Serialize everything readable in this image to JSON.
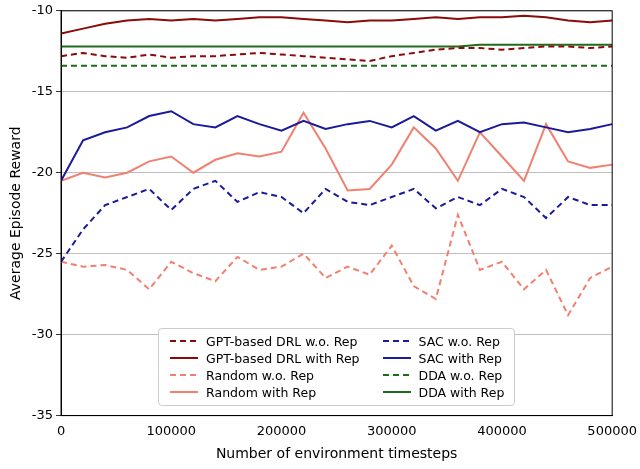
{
  "chart_data": {
    "type": "line",
    "x_label": "Number of environment timesteps",
    "y_label": "Average Episode Reward",
    "x": [
      0,
      20000,
      40000,
      60000,
      80000,
      100000,
      120000,
      140000,
      160000,
      180000,
      200000,
      220000,
      240000,
      260000,
      280000,
      300000,
      320000,
      340000,
      360000,
      380000,
      400000,
      420000,
      440000,
      460000,
      480000,
      500000
    ],
    "xlim": [
      0,
      500000
    ],
    "xticks": [
      0,
      100000,
      200000,
      300000,
      400000,
      500000
    ],
    "ylim": [
      -35,
      -10
    ],
    "yticks": [
      -35,
      -30,
      -25,
      -20,
      -15,
      -10
    ],
    "grid": true,
    "legend": "bottom",
    "series": [
      {
        "name": "GPT-based DRL w.o. Rep",
        "color": "#8b0a0a",
        "line_style": "dashed",
        "values": [
          -12.8,
          -12.6,
          -12.8,
          -12.9,
          -12.7,
          -12.9,
          -12.8,
          -12.8,
          -12.7,
          -12.6,
          -12.7,
          -12.8,
          -12.9,
          -13.0,
          -13.1,
          -12.8,
          -12.6,
          -12.4,
          -12.3,
          -12.3,
          -12.4,
          -12.3,
          -12.2,
          -12.2,
          -12.3,
          -12.2
        ]
      },
      {
        "name": "SAC w.o. Rep",
        "color": "#1a1a9a",
        "line_style": "dashed",
        "values": [
          -25.5,
          -23.5,
          -22.0,
          -21.5,
          -21.0,
          -22.3,
          -21.0,
          -20.5,
          -21.8,
          -21.2,
          -21.5,
          -22.5,
          -21.0,
          -21.8,
          -22.0,
          -21.5,
          -21.0,
          -22.2,
          -21.5,
          -22.0,
          -21.0,
          -21.5,
          -22.8,
          -21.5,
          -22.0,
          -22.0
        ]
      },
      {
        "name": "GPT-based DRL with Rep",
        "color": "#8b0a0a",
        "line_style": "solid",
        "values": [
          -11.4,
          -11.1,
          -10.8,
          -10.6,
          -10.5,
          -10.6,
          -10.5,
          -10.6,
          -10.5,
          -10.4,
          -10.4,
          -10.5,
          -10.6,
          -10.7,
          -10.6,
          -10.6,
          -10.5,
          -10.4,
          -10.5,
          -10.4,
          -10.4,
          -10.3,
          -10.4,
          -10.6,
          -10.7,
          -10.6
        ]
      },
      {
        "name": "SAC with Rep",
        "color": "#1a1a9a",
        "line_style": "solid",
        "values": [
          -20.5,
          -18.0,
          -17.5,
          -17.2,
          -16.5,
          -16.2,
          -17.0,
          -17.2,
          -16.5,
          -17.0,
          -17.4,
          -16.8,
          -17.3,
          -17.0,
          -16.8,
          -17.2,
          -16.5,
          -17.4,
          -16.8,
          -17.5,
          -17.0,
          -16.9,
          -17.2,
          -17.5,
          -17.3,
          -17.0
        ]
      },
      {
        "name": "Random w.o. Rep",
        "color": "#f08070",
        "line_style": "dashed",
        "values": [
          -25.5,
          -25.8,
          -25.7,
          -26.0,
          -27.2,
          -25.5,
          -26.2,
          -26.7,
          -25.2,
          -26.0,
          -25.8,
          -25.0,
          -26.5,
          -25.8,
          -26.3,
          -24.5,
          -27.0,
          -27.8,
          -22.6,
          -26.0,
          -25.5,
          -27.2,
          -26.0,
          -28.8,
          -26.5,
          -25.8
        ]
      },
      {
        "name": "DDA w.o. Rep",
        "color": "#1e6b1e",
        "line_style": "dashed",
        "values": [
          -13.4,
          -13.4,
          -13.4,
          -13.4,
          -13.4,
          -13.4,
          -13.4,
          -13.4,
          -13.4,
          -13.4,
          -13.4,
          -13.4,
          -13.4,
          -13.4,
          -13.4,
          -13.4,
          -13.4,
          -13.4,
          -13.4,
          -13.4,
          -13.4,
          -13.4,
          -13.4,
          -13.4,
          -13.4,
          -13.4
        ]
      },
      {
        "name": "Random with Rep",
        "color": "#f08070",
        "line_style": "solid",
        "values": [
          -20.5,
          -20.0,
          -20.3,
          -20.0,
          -19.3,
          -19.0,
          -20.0,
          -19.2,
          -18.8,
          -19.0,
          -18.7,
          -16.3,
          -18.5,
          -21.1,
          -21.0,
          -19.5,
          -17.2,
          -18.5,
          -20.5,
          -17.5,
          -19.0,
          -20.5,
          -17.0,
          -19.3,
          -19.7,
          -19.5
        ]
      },
      {
        "name": "DDA with Rep",
        "color": "#1e6b1e",
        "line_style": "solid",
        "values": [
          -12.2,
          -12.2,
          -12.2,
          -12.2,
          -12.2,
          -12.2,
          -12.2,
          -12.2,
          -12.2,
          -12.2,
          -12.2,
          -12.2,
          -12.2,
          -12.2,
          -12.2,
          -12.2,
          -12.2,
          -12.2,
          -12.2,
          -12.1,
          -12.1,
          -12.1,
          -12.1,
          -12.1,
          -12.1,
          -12.1
        ]
      }
    ]
  }
}
